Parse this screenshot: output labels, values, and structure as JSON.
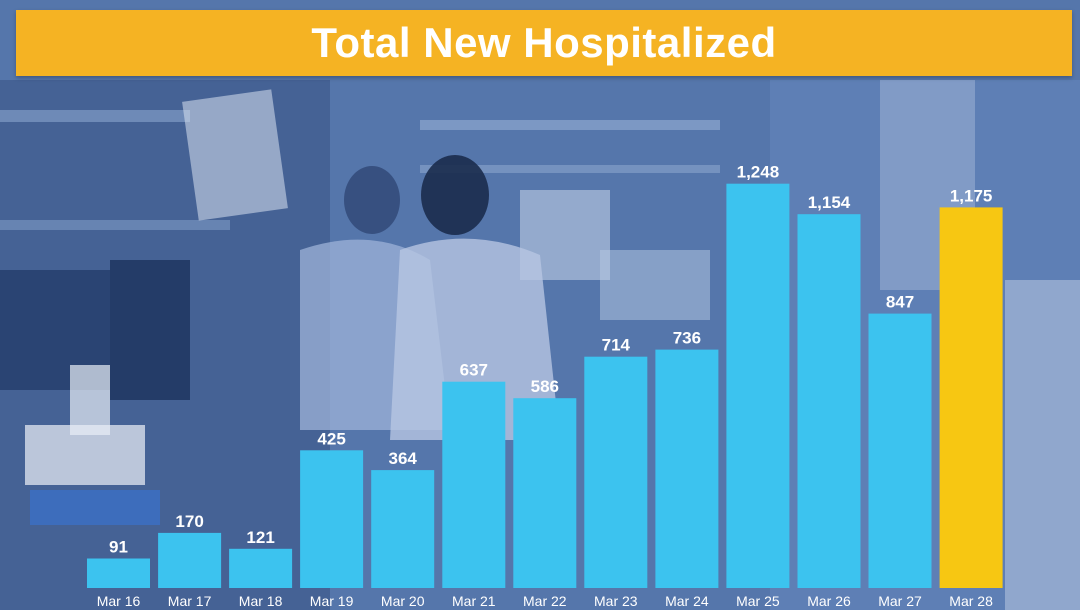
{
  "chart_data": {
    "type": "bar",
    "title": "Total New Hospitalized",
    "xlabel": "",
    "ylabel": "",
    "categories": [
      "Mar 16",
      "Mar 17",
      "Mar 18",
      "Mar 19",
      "Mar 20",
      "Mar 21",
      "Mar 22",
      "Mar 23",
      "Mar 24",
      "Mar 25",
      "Mar 26",
      "Mar 27",
      "Mar 28"
    ],
    "values": [
      91,
      170,
      121,
      425,
      364,
      637,
      586,
      714,
      736,
      1248,
      1154,
      847,
      1175
    ],
    "value_labels": [
      "91",
      "170",
      "121",
      "425",
      "364",
      "637",
      "586",
      "714",
      "736",
      "1,248",
      "1,154",
      "847",
      "1,175"
    ],
    "highlight_index": 12,
    "ylim": [
      0,
      1275
    ],
    "grid": false,
    "legend": "none",
    "colors": {
      "bar": "#3cc3ef",
      "highlight": "#f7c712",
      "title_bar": "#f5b323",
      "text": "#ffffff"
    }
  }
}
